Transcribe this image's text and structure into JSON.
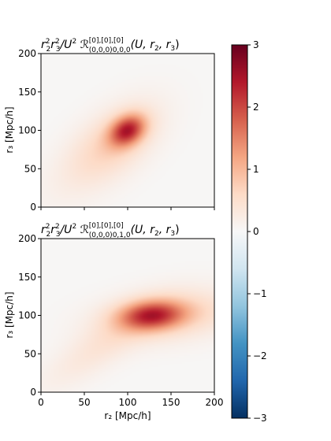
{
  "chart_data": {
    "type": "heatmap",
    "panels": [
      {
        "title": {
          "lead": "r",
          "sup1": "2",
          "s1": "2",
          "mid": "r",
          "sup2": "2",
          "s2": "3",
          "div": "/U",
          "sup3": "2",
          "R": " ℛ",
          "sup_idx": "[0],[0],[0]",
          "sub_idx": "(0,0,0)0,0,0",
          "args": "(U, r",
          "a2": "2",
          "comma": ", r",
          "a3": "3",
          "close": ")"
        },
        "ylabel": "r₃ [Mpc/h]",
        "xlabel": "",
        "xlim": [
          0,
          200
        ],
        "ylim": [
          0,
          200
        ],
        "xticks": [
          "0",
          "50",
          "100",
          "150",
          "200"
        ],
        "xtick_labels_shown": false,
        "yticks": [
          "0",
          "50",
          "100",
          "150",
          "200"
        ],
        "features": [
          {
            "cx": 100,
            "cy": 100,
            "sx": 16,
            "sy": 12,
            "angle_deg": 45,
            "amp": 1.9
          },
          {
            "cx": 85,
            "cy": 85,
            "sx": 42,
            "sy": 24,
            "angle_deg": 45,
            "amp": 0.55
          },
          {
            "cx": 60,
            "cy": 60,
            "sx": 60,
            "sy": 26,
            "angle_deg": 45,
            "amp": 0.18
          }
        ]
      },
      {
        "title": {
          "lead": "r",
          "sup1": "2",
          "s1": "2",
          "mid": "r",
          "sup2": "2",
          "s2": "3",
          "div": "/U",
          "sup3": "2",
          "R": " ℛ",
          "sup_idx": "[0],[0],[0]",
          "sub_idx": "(0,0,0)0,1,0",
          "args": "(U, r",
          "a2": "2",
          "comma": ", r",
          "a3": "3",
          "close": ")"
        },
        "ylabel": "r₃ [Mpc/h]",
        "xlabel": "r₂ [Mpc/h]",
        "xlim": [
          0,
          200
        ],
        "ylim": [
          0,
          200
        ],
        "xticks": [
          "0",
          "50",
          "100",
          "150",
          "200"
        ],
        "xtick_labels_shown": true,
        "yticks": [
          "0",
          "50",
          "100",
          "150",
          "200"
        ],
        "features": [
          {
            "cx": 128,
            "cy": 100,
            "sx": 26,
            "sy": 13,
            "angle_deg": 5,
            "amp": 1.75
          },
          {
            "cx": 150,
            "cy": 100,
            "sx": 55,
            "sy": 22,
            "angle_deg": 8,
            "amp": 0.65
          },
          {
            "cx": 70,
            "cy": 60,
            "sx": 58,
            "sy": 18,
            "angle_deg": 38,
            "amp": 0.35
          }
        ]
      }
    ],
    "colorbar": {
      "cmap": "RdBu_r",
      "range": [
        -3,
        3
      ],
      "ticks": [
        "3",
        "2",
        "1",
        "0",
        "−1",
        "−2",
        "−3"
      ]
    }
  }
}
